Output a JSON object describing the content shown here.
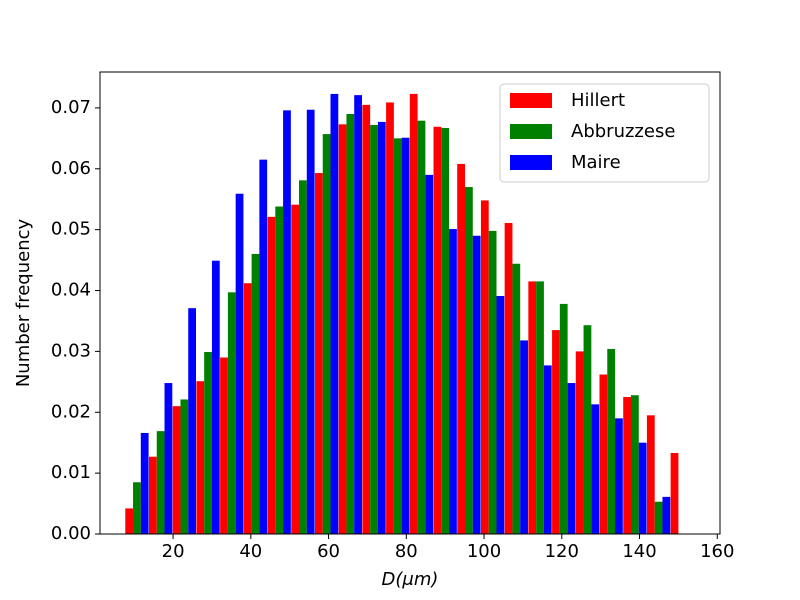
{
  "chart_data": {
    "type": "grouped-histogram",
    "xlabel": "D(μm)",
    "ylabel": "Number frequency",
    "x": [
      10.7,
      16.8,
      22.9,
      29.0,
      35.1,
      41.2,
      47.3,
      53.4,
      59.5,
      65.6,
      71.7,
      77.8,
      83.9,
      90.0,
      96.1,
      102.2,
      108.3,
      114.4,
      120.5,
      126.6,
      132.7,
      138.8,
      144.9,
      151.0
    ],
    "series": [
      {
        "name": "Hillert",
        "color": "#ff0000",
        "values": [
          0.0042,
          0.0127,
          0.021,
          0.0251,
          0.029,
          0.0412,
          0.0521,
          0.0541,
          0.0593,
          0.0673,
          0.0705,
          0.0709,
          0.0723,
          0.0669,
          0.0608,
          0.0548,
          0.0511,
          0.0415,
          0.0335,
          0.03,
          0.0262,
          0.0225,
          0.0195,
          0.0133
        ]
      },
      {
        "name": "Abbruzzese",
        "color": "#008000",
        "values": [
          0.0085,
          0.0169,
          0.0221,
          0.0299,
          0.0397,
          0.046,
          0.0538,
          0.0581,
          0.0657,
          0.069,
          0.0672,
          0.065,
          0.0679,
          0.0667,
          0.057,
          0.0498,
          0.0444,
          0.0415,
          0.0378,
          0.0343,
          0.0304,
          0.0228,
          0.0053,
          null
        ]
      },
      {
        "name": "Maire",
        "color": "#0000ff",
        "values": [
          0.0166,
          0.0248,
          0.0371,
          0.0449,
          0.0559,
          0.0615,
          0.0696,
          0.0697,
          0.0723,
          0.0721,
          0.0677,
          0.0651,
          0.059,
          0.0501,
          0.049,
          0.0391,
          0.0318,
          0.0277,
          0.0248,
          0.0213,
          0.019,
          0.015,
          0.0061,
          null
        ]
      }
    ],
    "xlim": [
      1.2,
      160.7
    ],
    "xticks": [
      20,
      40,
      60,
      80,
      100,
      120,
      140,
      160
    ],
    "ylim": [
      0,
      0.0759
    ],
    "yticks": [
      {
        "value": 0,
        "label": "0.00"
      },
      {
        "value": 0.01,
        "label": "0.01"
      },
      {
        "value": 0.02,
        "label": "0.02"
      },
      {
        "value": 0.03,
        "label": "0.03"
      },
      {
        "value": 0.04,
        "label": "0.04"
      },
      {
        "value": 0.05,
        "label": "0.05"
      },
      {
        "value": 0.06,
        "label": "0.06"
      },
      {
        "value": 0.07,
        "label": "0.07"
      }
    ],
    "legend": "upper right",
    "grid": false
  }
}
